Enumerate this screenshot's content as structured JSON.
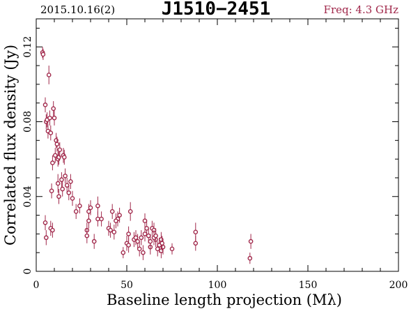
{
  "header": {
    "date": "2015.10.16(2)",
    "source": "J1510−2451",
    "frequency": "Freq: 4.3 GHz"
  },
  "colors": {
    "data": "#a0274a",
    "axes": "#000000",
    "background": "#ffffff"
  },
  "chart_data": {
    "type": "scatter",
    "title": "J1510−2451",
    "xlabel": "Baseline length projection (Mλ)",
    "ylabel": "Correlated flux density (Jy)",
    "xlim": [
      0,
      200
    ],
    "ylim": [
      0,
      0.135
    ],
    "xticks": [
      0,
      50,
      100,
      150,
      200
    ],
    "xtick_labels": [
      "0",
      "50",
      "100",
      "150",
      "200"
    ],
    "yticks": [
      0,
      0.04,
      0.08,
      0.12
    ],
    "ytick_labels": [
      "0",
      "0.04",
      "0.08",
      "0.12"
    ],
    "grid": false,
    "marker": "open-circle-with-error-bar",
    "series": [
      {
        "x": [
          3.5,
          3.8,
          5,
          5.5,
          6,
          6.5,
          7,
          7.5,
          8,
          8.5,
          9,
          9.5,
          10,
          10.5,
          11,
          11.5,
          12,
          12.5,
          13,
          14,
          14.5,
          15,
          15.5,
          16,
          17,
          18,
          19,
          20,
          22,
          24,
          28,
          29,
          30,
          34,
          36,
          40,
          42,
          43,
          45,
          46,
          48,
          50,
          51,
          52,
          54,
          56,
          58,
          60,
          61,
          62,
          63,
          64,
          65,
          66,
          68,
          69,
          70,
          75,
          88,
          118,
          5,
          5.5,
          8,
          9,
          12,
          12.5,
          28,
          29,
          32,
          34,
          41,
          44,
          51,
          55,
          57,
          59,
          60,
          63,
          65,
          66,
          67,
          68,
          69,
          69.5,
          88,
          118.5
        ],
        "y": [
          0.117,
          0.116,
          0.089,
          0.08,
          0.081,
          0.075,
          0.105,
          0.082,
          0.074,
          0.043,
          0.058,
          0.087,
          0.082,
          0.062,
          0.07,
          0.068,
          0.06,
          0.061,
          0.065,
          0.049,
          0.044,
          0.062,
          0.061,
          0.051,
          0.046,
          0.042,
          0.048,
          0.039,
          0.032,
          0.035,
          0.022,
          0.032,
          0.034,
          0.035,
          0.028,
          0.023,
          0.032,
          0.021,
          0.028,
          0.03,
          0.01,
          0.015,
          0.02,
          0.032,
          0.017,
          0.016,
          0.018,
          0.027,
          0.023,
          0.019,
          0.013,
          0.023,
          0.022,
          0.017,
          0.014,
          0.017,
          0.013,
          0.012,
          0.021,
          0.007,
          0.026,
          0.018,
          0.023,
          0.022,
          0.047,
          0.04,
          0.019,
          0.027,
          0.016,
          0.028,
          0.022,
          0.027,
          0.014,
          0.018,
          0.012,
          0.01,
          0.02,
          0.016,
          0.018,
          0.019,
          0.012,
          0.014,
          0.011,
          0.015,
          0.015,
          0.016
        ],
        "err": [
          0.003,
          0.003,
          0.004,
          0.004,
          0.004,
          0.004,
          0.005,
          0.004,
          0.004,
          0.004,
          0.004,
          0.004,
          0.004,
          0.004,
          0.004,
          0.004,
          0.004,
          0.004,
          0.004,
          0.004,
          0.004,
          0.004,
          0.004,
          0.004,
          0.004,
          0.004,
          0.004,
          0.004,
          0.004,
          0.004,
          0.004,
          0.004,
          0.004,
          0.005,
          0.004,
          0.004,
          0.004,
          0.004,
          0.004,
          0.004,
          0.003,
          0.004,
          0.004,
          0.005,
          0.004,
          0.004,
          0.004,
          0.004,
          0.004,
          0.004,
          0.004,
          0.004,
          0.004,
          0.004,
          0.004,
          0.004,
          0.004,
          0.003,
          0.005,
          0.003,
          0.004,
          0.004,
          0.004,
          0.004,
          0.005,
          0.004,
          0.004,
          0.004,
          0.004,
          0.004,
          0.004,
          0.004,
          0.004,
          0.004,
          0.004,
          0.004,
          0.004,
          0.004,
          0.004,
          0.004,
          0.004,
          0.004,
          0.004,
          0.004,
          0.004,
          0.004
        ]
      }
    ]
  }
}
